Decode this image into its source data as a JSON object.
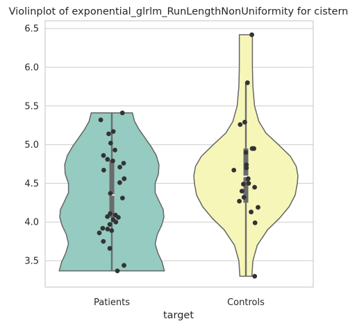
{
  "chart_data": {
    "type": "violin",
    "title": "Violinplot of exponential_glrlm_RunLengthNonUniformity for cistern",
    "xlabel": "target",
    "ylabel": "",
    "ylim": [
      3.16,
      6.6
    ],
    "yticks": [
      "3.5",
      "4.0",
      "4.5",
      "5.0",
      "5.5",
      "6.0",
      "6.5"
    ],
    "grid": true,
    "colors": {
      "Patients": "#95cbc1",
      "Controls": "#f6f6b9",
      "points": "#333333",
      "box": "#6b6b6b",
      "frame": "#cccccc"
    },
    "groups": [
      {
        "name": "Patients",
        "min": 3.37,
        "q1": 4.06,
        "median": 4.35,
        "q3": 4.8,
        "max": 5.41,
        "points": [
          5.41,
          5.32,
          5.17,
          5.14,
          5.02,
          4.93,
          4.86,
          4.81,
          4.79,
          4.76,
          4.71,
          4.67,
          4.56,
          4.51,
          4.37,
          4.31,
          4.11,
          4.09,
          4.07,
          4.06,
          4.03,
          4.0,
          3.97,
          3.92,
          3.91,
          3.89,
          3.86,
          3.75,
          3.66,
          3.44,
          3.37
        ],
        "violin_profile": [
          [
            3.37,
            0.97
          ],
          [
            3.48,
            0.93
          ],
          [
            3.6,
            0.85
          ],
          [
            3.72,
            0.8
          ],
          [
            3.84,
            0.84
          ],
          [
            3.96,
            0.92
          ],
          [
            4.06,
            0.96
          ],
          [
            4.16,
            0.95
          ],
          [
            4.26,
            0.88
          ],
          [
            4.38,
            0.8
          ],
          [
            4.5,
            0.8
          ],
          [
            4.62,
            0.86
          ],
          [
            4.74,
            0.87
          ],
          [
            4.86,
            0.82
          ],
          [
            4.98,
            0.72
          ],
          [
            5.1,
            0.6
          ],
          [
            5.2,
            0.5
          ],
          [
            5.3,
            0.42
          ],
          [
            5.41,
            0.38
          ]
        ]
      },
      {
        "name": "Controls",
        "min": 3.3,
        "q1": 4.25,
        "median": 4.59,
        "q3": 4.95,
        "max": 5.8,
        "points": [
          6.42,
          5.8,
          5.29,
          5.26,
          4.95,
          4.95,
          4.9,
          4.74,
          4.7,
          4.67,
          4.56,
          4.5,
          4.49,
          4.45,
          4.4,
          4.32,
          4.27,
          4.19,
          4.13,
          3.99,
          3.3
        ],
        "violin_profile": [
          [
            3.3,
            0.11
          ],
          [
            3.5,
            0.13
          ],
          [
            3.7,
            0.21
          ],
          [
            3.9,
            0.4
          ],
          [
            4.05,
            0.62
          ],
          [
            4.2,
            0.8
          ],
          [
            4.35,
            0.91
          ],
          [
            4.5,
            0.95
          ],
          [
            4.6,
            0.96
          ],
          [
            4.72,
            0.93
          ],
          [
            4.85,
            0.82
          ],
          [
            5.0,
            0.6
          ],
          [
            5.15,
            0.37
          ],
          [
            5.3,
            0.24
          ],
          [
            5.5,
            0.16
          ],
          [
            5.75,
            0.13
          ],
          [
            6.0,
            0.12
          ],
          [
            6.2,
            0.12
          ],
          [
            6.42,
            0.12
          ]
        ]
      }
    ]
  }
}
